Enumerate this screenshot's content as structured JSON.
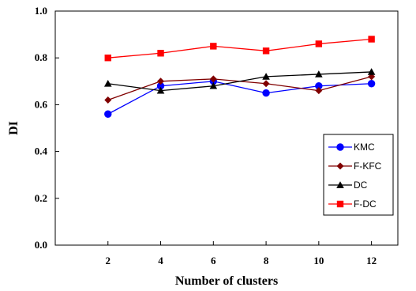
{
  "chart_data": {
    "type": "line",
    "xlabel": "Number of clusters",
    "ylabel": "DI",
    "x": [
      2,
      4,
      6,
      8,
      10,
      12
    ],
    "xlim": [
      0,
      13
    ],
    "ylim": [
      0.0,
      1.0
    ],
    "yticks": [
      "0.0",
      "0.2",
      "0.4",
      "0.6",
      "0.8",
      "1.0"
    ],
    "xticks": [
      "2",
      "4",
      "6",
      "8",
      "10",
      "12"
    ],
    "grid": false,
    "legend_position": "bottom-right",
    "series": [
      {
        "name": "KMC",
        "values": [
          0.56,
          0.68,
          0.7,
          0.65,
          0.68,
          0.69
        ],
        "color": "#0000ff",
        "marker": "circle"
      },
      {
        "name": "F-KFC",
        "values": [
          0.62,
          0.7,
          0.71,
          0.69,
          0.66,
          0.72
        ],
        "color": "#800000",
        "marker": "diamond"
      },
      {
        "name": "DC",
        "values": [
          0.69,
          0.66,
          0.68,
          0.72,
          0.73,
          0.74
        ],
        "color": "#000000",
        "marker": "triangle"
      },
      {
        "name": "F-DC",
        "values": [
          0.8,
          0.82,
          0.85,
          0.83,
          0.86,
          0.88
        ],
        "color": "#ff0000",
        "marker": "square"
      }
    ]
  }
}
